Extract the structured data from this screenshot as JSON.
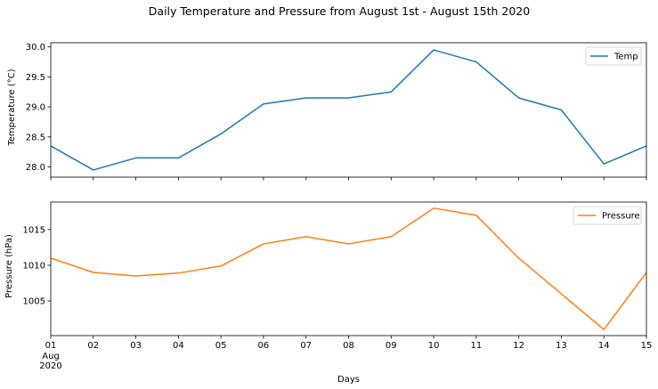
{
  "figure": {
    "title": "Daily Temperature and Pressure from August 1st - August 15th 2020"
  },
  "chart_data": [
    {
      "type": "line",
      "x": [
        "01",
        "02",
        "03",
        "04",
        "05",
        "06",
        "07",
        "08",
        "09",
        "10",
        "11",
        "12",
        "13",
        "14",
        "15"
      ],
      "series": [
        {
          "name": "Temp",
          "color": "#1f77b4",
          "values": [
            28.35,
            27.95,
            28.15,
            28.15,
            28.55,
            29.05,
            29.15,
            29.15,
            29.25,
            29.95,
            29.75,
            29.15,
            28.95,
            28.05,
            28.35
          ]
        }
      ],
      "ylabel": "Temperature (°C)",
      "ylim": [
        27.83,
        30.07
      ],
      "yticks": [
        28.0,
        28.5,
        29.0,
        29.5,
        30.0
      ],
      "ytick_labels": [
        "28.0",
        "28.5",
        "29.0",
        "29.5",
        "30.0"
      ],
      "legend": "top-right",
      "grid": false
    },
    {
      "type": "line",
      "x": [
        "01",
        "02",
        "03",
        "04",
        "05",
        "06",
        "07",
        "08",
        "09",
        "10",
        "11",
        "12",
        "13",
        "14",
        "15"
      ],
      "series": [
        {
          "name": "Pressure",
          "color": "#ff7f0e",
          "values": [
            1011.0,
            1009.0,
            1008.5,
            1008.9,
            1009.9,
            1013.0,
            1014.0,
            1013.0,
            1014.0,
            1018.0,
            1017.0,
            1011.0,
            1006.0,
            1001.0,
            1009.0
          ]
        }
      ],
      "ylabel": "Pressure (hPa)",
      "ylim": [
        1000.15,
        1018.85
      ],
      "yticks": [
        1005,
        1010,
        1015
      ],
      "ytick_labels": [
        "1005",
        "1010",
        "1015"
      ],
      "xlabel": "Days",
      "xtick_labels": [
        "01",
        "02",
        "03",
        "04",
        "05",
        "06",
        "07",
        "08",
        "09",
        "10",
        "11",
        "12",
        "13",
        "14",
        "15"
      ],
      "xtick_sublabels": [
        "Aug",
        "2020"
      ],
      "legend": "top-right",
      "grid": false
    }
  ]
}
